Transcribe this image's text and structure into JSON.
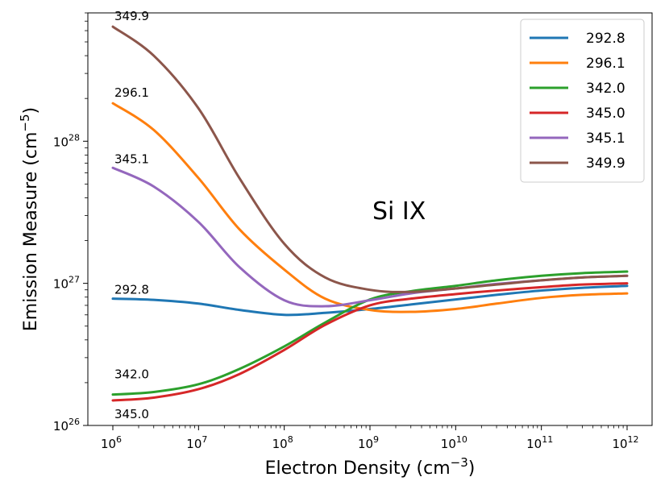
{
  "chart_data": {
    "type": "line",
    "title": "Si IX",
    "xlabel": "Electron Density (cm",
    "xlabel_exp": "−3",
    "xlabel_end": ")",
    "ylabel": "Emission Measure (cm",
    "ylabel_exp": "−5",
    "ylabel_end": ")",
    "xscale": "log",
    "yscale": "log",
    "xlim": [
      1000000.0,
      1000000000000.0
    ],
    "ylim": [
      1e+26,
      8e+28
    ],
    "x_ticks": [
      {
        "value": 1000000.0,
        "base": "10",
        "exp": "6"
      },
      {
        "value": 10000000.0,
        "base": "10",
        "exp": "7"
      },
      {
        "value": 100000000.0,
        "base": "10",
        "exp": "8"
      },
      {
        "value": 1000000000.0,
        "base": "10",
        "exp": "9"
      },
      {
        "value": 10000000000.0,
        "base": "10",
        "exp": "10"
      },
      {
        "value": 100000000000.0,
        "base": "10",
        "exp": "11"
      },
      {
        "value": 1000000000000.0,
        "base": "10",
        "exp": "12"
      }
    ],
    "y_ticks": [
      {
        "value": 1e+26,
        "base": "10",
        "exp": "26"
      },
      {
        "value": 1e+27,
        "base": "10",
        "exp": "27"
      },
      {
        "value": 1e+28,
        "base": "10",
        "exp": "28"
      }
    ],
    "legend_position": "top-right",
    "x": [
      1000000.0,
      3000000.0,
      10000000.0,
      30000000.0,
      100000000.0,
      300000000.0,
      1000000000.0,
      3000000000.0,
      10000000000.0,
      30000000000.0,
      100000000000.0,
      300000000000.0,
      1000000000000.0
    ],
    "series": [
      {
        "name": "292.8",
        "color": "#1f77b4",
        "annotation": "292.8",
        "values": [
          7.8e+26,
          7.65e+26,
          7.2e+26,
          6.5e+26,
          6e+26,
          6.2e+26,
          6.6e+26,
          7.1e+26,
          7.7e+26,
          8.3e+26,
          8.9e+26,
          9.3e+26,
          9.6e+26
        ]
      },
      {
        "name": "296.1",
        "color": "#ff7f0e",
        "annotation": "296.1",
        "values": [
          1.85e+28,
          1.2e+28,
          5.5e+27,
          2.4e+27,
          1.25e+27,
          7.8e+26,
          6.5e+26,
          6.3e+26,
          6.6e+26,
          7.2e+26,
          7.9e+26,
          8.3e+26,
          8.5e+26
        ]
      },
      {
        "name": "342.0",
        "color": "#2ca02c",
        "annotation": "342.0",
        "values": [
          1.65e+26,
          1.72e+26,
          1.95e+26,
          2.5e+26,
          3.6e+26,
          5.3e+26,
          7.7e+26,
          8.8e+26,
          9.6e+26,
          1.05e+27,
          1.13e+27,
          1.18e+27,
          1.21e+27
        ]
      },
      {
        "name": "345.0",
        "color": "#d62728",
        "annotation": "345.0",
        "values": [
          1.5e+26,
          1.57e+26,
          1.8e+26,
          2.3e+26,
          3.4e+26,
          5.1e+26,
          7e+26,
          7.8e+26,
          8.4e+26,
          8.9e+26,
          9.4e+26,
          9.8e+26,
          1e+27
        ]
      },
      {
        "name": "345.1",
        "color": "#9467bd",
        "annotation": "345.1",
        "values": [
          6.5e+27,
          4.8e+27,
          2.7e+27,
          1.3e+27,
          7.6e+26,
          6.9e+26,
          7.6e+26,
          8.5e+26,
          9.2e+26,
          9.9e+26,
          1.05e+27,
          1.1e+27,
          1.13e+27
        ]
      },
      {
        "name": "349.9",
        "color": "#8c564b",
        "annotation": "349.9",
        "values": [
          6.4e+28,
          4e+28,
          1.7e+28,
          5.5e+27,
          1.9e+27,
          1.1e+27,
          9e+26,
          8.7e+26,
          9.2e+26,
          9.8e+26,
          1.05e+27,
          1.1e+27,
          1.13e+27
        ]
      }
    ]
  }
}
